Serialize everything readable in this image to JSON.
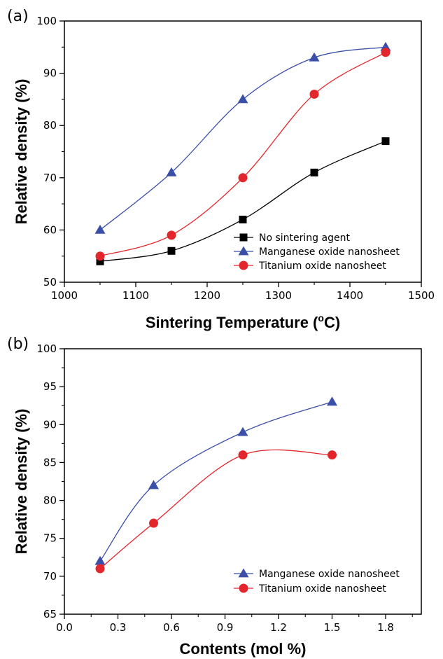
{
  "chart_data": [
    {
      "panel_label": "(a)",
      "type": "scatter",
      "xlabel": "Sintering Temperature (",
      "xlabel_sup": "o",
      "xlabel_end": "C)",
      "ylabel": "Relative density (%)",
      "xlim": [
        1000,
        1500
      ],
      "ylim": [
        50,
        100
      ],
      "xticks": [
        "1000",
        "1100",
        "1200",
        "1300",
        "1400",
        "1500"
      ],
      "yticks": [
        "50",
        "60",
        "70",
        "80",
        "90",
        "100"
      ],
      "legend_position": "bottom-right",
      "series": [
        {
          "name": "No sintering agent",
          "marker": "square",
          "color": "#000000",
          "x": [
            1050,
            1150,
            1250,
            1350,
            1450
          ],
          "y": [
            54,
            56,
            62,
            71,
            77
          ]
        },
        {
          "name": "Manganese oxide nanosheet",
          "marker": "triangle",
          "color": "#3b4fa8",
          "x": [
            1050,
            1150,
            1250,
            1350,
            1450
          ],
          "y": [
            60,
            71,
            85,
            93,
            95
          ]
        },
        {
          "name": "Titanium oxide nanosheet",
          "marker": "circle",
          "color": "#e3262c",
          "x": [
            1050,
            1150,
            1250,
            1350,
            1450
          ],
          "y": [
            55,
            59,
            70,
            86,
            94
          ]
        }
      ]
    },
    {
      "panel_label": "(b)",
      "type": "scatter",
      "xlabel": "Contents (mol %)",
      "ylabel": "Relative density (%)",
      "xlim": [
        0.0,
        2.0
      ],
      "ylim": [
        65,
        100
      ],
      "xticks": [
        "0.0",
        "0.3",
        "0.6",
        "0.9",
        "1.2",
        "1.5",
        "1.8"
      ],
      "yticks": [
        "65",
        "70",
        "75",
        "80",
        "85",
        "90",
        "95",
        "100"
      ],
      "legend_position": "bottom-right",
      "series": [
        {
          "name": "Manganese oxide nanosheet",
          "marker": "triangle",
          "color": "#3b4fa8",
          "x": [
            0.2,
            0.5,
            1.0,
            1.5
          ],
          "y": [
            72,
            82,
            89,
            93
          ]
        },
        {
          "name": "Titanium oxide nanosheet",
          "marker": "circle",
          "color": "#e3262c",
          "x": [
            0.2,
            0.5,
            1.0,
            1.5
          ],
          "y": [
            71,
            77,
            86,
            86
          ]
        }
      ]
    }
  ]
}
